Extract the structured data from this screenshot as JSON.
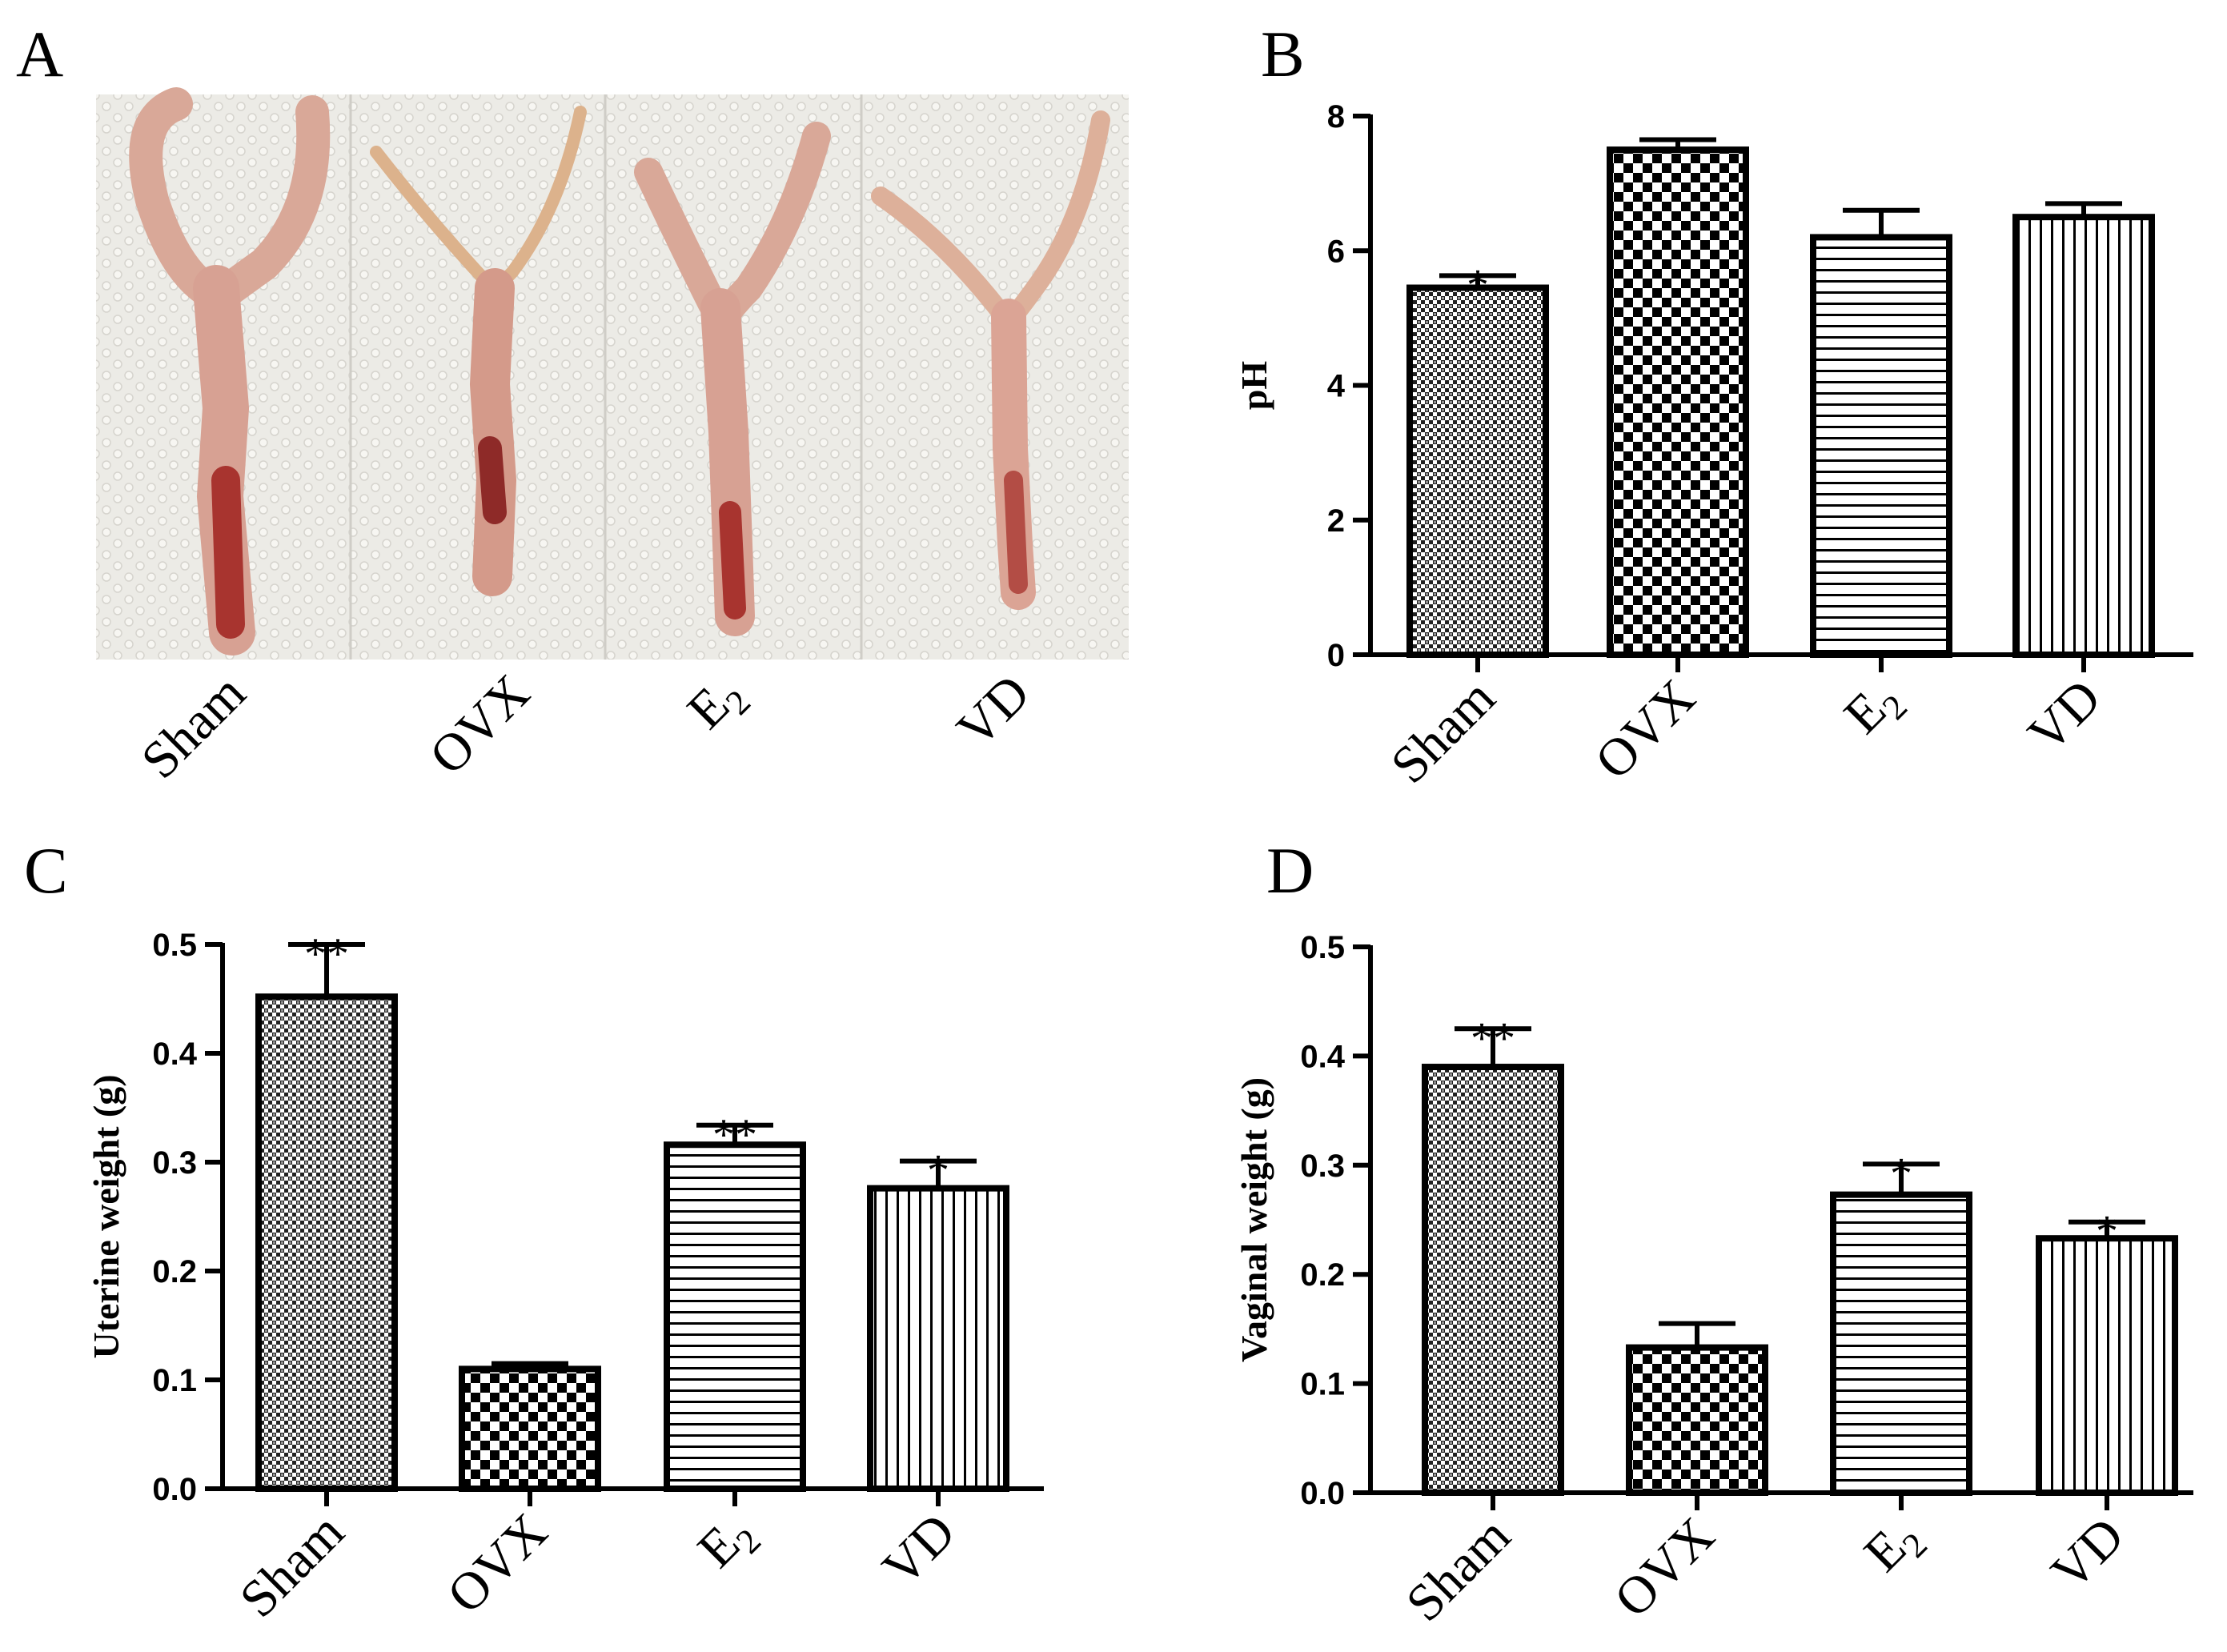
{
  "panels": {
    "a": "A",
    "b": "B",
    "c": "C",
    "d": "D"
  },
  "photo": {
    "description_labels": [
      "Sham",
      "OVX",
      "E2",
      "VD"
    ],
    "tissue_color": "#d8a497",
    "background_color": "#ecebe6"
  },
  "chart_data": [
    {
      "panel": "B",
      "type": "bar",
      "categories": [
        "Sham",
        "OVX",
        "E2",
        "VD"
      ],
      "values": [
        5.45,
        7.5,
        6.2,
        6.5
      ],
      "errors": [
        0.18,
        0.15,
        0.4,
        0.2
      ],
      "significance": [
        "*",
        "",
        "",
        ""
      ],
      "ylabel": "pH",
      "ylim": [
        0,
        8
      ],
      "yticks": [
        "0",
        "2",
        "4",
        "6",
        "8"
      ],
      "ytick_values": [
        0,
        2,
        4,
        6,
        8
      ]
    },
    {
      "panel": "C",
      "type": "bar",
      "categories": [
        "Sham",
        "OVX",
        "E2",
        "VD"
      ],
      "values": [
        0.452,
        0.11,
        0.316,
        0.276
      ],
      "errors": [
        0.048,
        0.005,
        0.018,
        0.025
      ],
      "significance": [
        "**",
        "",
        "**",
        "*"
      ],
      "ylabel": "Uterine weight (g)",
      "ylim": [
        0,
        0.5
      ],
      "yticks": [
        "0.0",
        "0.1",
        "0.2",
        "0.3",
        "0.4",
        "0.5"
      ],
      "ytick_values": [
        0,
        0.1,
        0.2,
        0.3,
        0.4,
        0.5
      ]
    },
    {
      "panel": "D",
      "type": "bar",
      "categories": [
        "Sham",
        "OVX",
        "E2",
        "VD"
      ],
      "values": [
        0.39,
        0.133,
        0.273,
        0.233
      ],
      "errors": [
        0.035,
        0.022,
        0.028,
        0.015
      ],
      "significance": [
        "**",
        "",
        "*",
        "*"
      ],
      "ylabel": "Vaginal weight (g)",
      "ylim": [
        0,
        0.5
      ],
      "yticks": [
        "0.0",
        "0.1",
        "0.2",
        "0.3",
        "0.4",
        "0.5"
      ],
      "ytick_values": [
        0,
        0.1,
        0.2,
        0.3,
        0.4,
        0.5
      ]
    }
  ]
}
